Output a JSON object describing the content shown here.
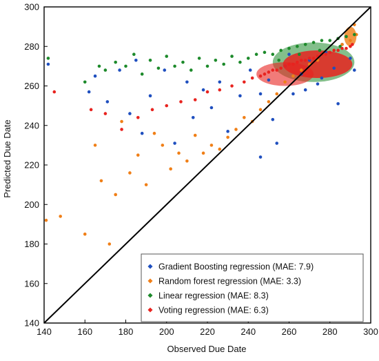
{
  "chart_data": {
    "type": "scatter",
    "xlabel": "Observed Due Date",
    "ylabel": "Predicted Due Date",
    "xlim": [
      140,
      300
    ],
    "ylim": [
      140,
      300
    ],
    "x_ticks": [
      "140",
      "160",
      "180",
      "200",
      "220",
      "240",
      "260",
      "280",
      "300"
    ],
    "y_ticks": [
      "140",
      "160",
      "180",
      "200",
      "220",
      "240",
      "260",
      "280",
      "300"
    ],
    "grid": false,
    "legend_position": "bottom-right",
    "reference_line": {
      "label": "",
      "from": [
        140,
        140
      ],
      "to": [
        300,
        300
      ],
      "color": "#000000"
    },
    "series": [
      {
        "name": "Gradient Boosting regression (MAE: 7.9)",
        "color": "#1f4fbf",
        "x": [
          142,
          162,
          165,
          171,
          177,
          182,
          185,
          188,
          192,
          199,
          204,
          210,
          213,
          218,
          222,
          226,
          230,
          236,
          241,
          246,
          250,
          254,
          258,
          262,
          266,
          270,
          274,
          278,
          282,
          286,
          290,
          246,
          252,
          260,
          268,
          276,
          284,
          292
        ],
        "y": [
          271,
          257,
          265,
          252,
          268,
          246,
          273,
          236,
          255,
          268,
          231,
          262,
          244,
          258,
          249,
          262,
          237,
          255,
          268,
          224,
          263,
          231,
          270,
          256,
          266,
          273,
          261,
          277,
          269,
          281,
          274,
          256,
          243,
          276,
          258,
          264,
          251,
          268
        ]
      },
      {
        "name": "Random forest regression (MAE: 3.3)",
        "color": "#f07f17",
        "x": [
          141,
          148,
          160,
          165,
          168,
          172,
          175,
          178,
          182,
          186,
          190,
          194,
          198,
          202,
          206,
          210,
          214,
          218,
          222,
          226,
          230,
          234,
          238,
          242,
          246,
          250,
          254,
          258,
          262,
          266,
          270,
          274,
          278,
          282,
          286,
          290,
          292,
          293
        ],
        "y": [
          192,
          194,
          185,
          230,
          212,
          180,
          205,
          242,
          216,
          225,
          210,
          236,
          230,
          218,
          226,
          222,
          235,
          226,
          230,
          228,
          234,
          238,
          244,
          242,
          248,
          252,
          256,
          262,
          265,
          268,
          271,
          273,
          276,
          278,
          281,
          283,
          291,
          286
        ]
      },
      {
        "name": "Linear regression (MAE: 8.3)",
        "color": "#1d8a2b",
        "x": [
          142,
          160,
          167,
          170,
          175,
          180,
          184,
          188,
          192,
          196,
          200,
          204,
          208,
          212,
          216,
          220,
          224,
          228,
          232,
          236,
          240,
          244,
          248,
          252,
          256,
          260,
          264,
          268,
          272,
          276,
          280,
          284,
          288,
          292,
          255,
          265,
          275,
          285
        ],
        "y": [
          274,
          262,
          270,
          268,
          272,
          270,
          276,
          266,
          273,
          269,
          275,
          270,
          272,
          268,
          274,
          270,
          273,
          271,
          275,
          272,
          274,
          276,
          277,
          276,
          278,
          279,
          280,
          281,
          282,
          283,
          283,
          284,
          285,
          286,
          273,
          276,
          278,
          280
        ]
      },
      {
        "name": "Voting regression (MAE: 6.3)",
        "color": "#e8231f",
        "x": [
          145,
          163,
          170,
          178,
          186,
          193,
          200,
          207,
          214,
          220,
          226,
          232,
          238,
          242,
          246,
          248,
          250,
          252,
          254,
          256,
          258,
          260,
          262,
          264,
          266,
          268,
          270,
          272,
          274,
          276,
          278,
          280,
          282,
          284,
          286,
          288,
          290,
          291
        ],
        "y": [
          257,
          248,
          246,
          238,
          244,
          248,
          250,
          252,
          253,
          257,
          258,
          260,
          262,
          264,
          265,
          266,
          267,
          268,
          268,
          269,
          270,
          271,
          271,
          272,
          273,
          273,
          274,
          274,
          275,
          276,
          276,
          277,
          278,
          278,
          279,
          279,
          280,
          281
        ]
      }
    ]
  }
}
